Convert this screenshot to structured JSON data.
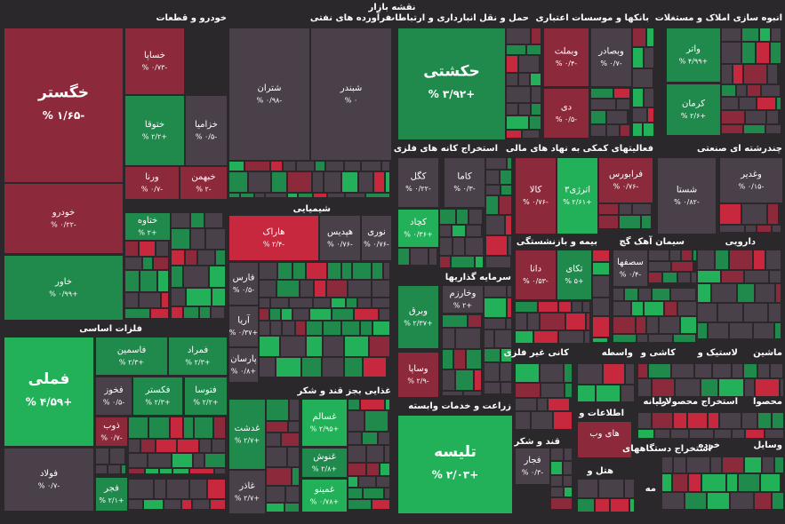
{
  "title": "نقشه بازار",
  "sectors": [
    {
      "name": "خودرو و قطعات",
      "tiles": [
        {
          "name": "خگستر",
          "change": "-۱/۶۵ %"
        },
        {
          "name": "خساپا",
          "change": "-۰/۷۳ %"
        },
        {
          "name": "ختوقا",
          "change": "+۲/۲ %"
        },
        {
          "name": "خزامیا",
          "change": "-۰/۵ %"
        },
        {
          "name": "ورنا",
          "change": "-۰/۷ %"
        },
        {
          "name": "خبهمن",
          "change": "-۲ %"
        },
        {
          "name": "خودرو",
          "change": "-۰/۲۲ %"
        },
        {
          "name": "خاور",
          "change": "+۰/۹۹ %"
        },
        {
          "name": "ختاوه",
          "change": "+۲ %"
        }
      ]
    },
    {
      "name": "فرآورده های نفتی",
      "tiles": [
        {
          "name": "شتران",
          "change": "-۰/۹۸ %"
        },
        {
          "name": "شبندر",
          "change": "۰ %"
        }
      ]
    },
    {
      "name": "شیمیایی",
      "tiles": [
        {
          "name": "هاراک",
          "change": "-۲/۴ %"
        },
        {
          "name": "هپدیس",
          "change": "-۰/۷۶ %"
        },
        {
          "name": "نوری",
          "change": "-۰/۷۶ %"
        },
        {
          "name": "فارس",
          "change": "-۰/۵ %"
        },
        {
          "name": "آریا",
          "change": "+۰/۳۷ %"
        },
        {
          "name": "پارسان",
          "change": "+۰/۸ %"
        }
      ]
    },
    {
      "name": "غذایی بجز قند و شکر",
      "tiles": [
        {
          "name": "غدشت",
          "change": "+۲/۷ %"
        },
        {
          "name": "غسالم",
          "change": "+۲/۹۵ %"
        },
        {
          "name": "غنوش",
          "change": "+۲/۸ %"
        },
        {
          "name": "غمینو",
          "change": "+۰/۷۸ %"
        },
        {
          "name": "غاذر",
          "change": "+۲/۷ %"
        }
      ]
    },
    {
      "name": "حمل و نقل انبارداری و ارتباطات",
      "tiles": [
        {
          "name": "حکشتی",
          "change": "+۳/۹۲ %"
        }
      ]
    },
    {
      "name": "بانکها و موسسات اعتباری",
      "tiles": [
        {
          "name": "وبملت",
          "change": "-۰/۴ %"
        },
        {
          "name": "وبصادر",
          "change": "-۰/۷ %"
        },
        {
          "name": "دی",
          "change": "-۰/۵ %"
        }
      ]
    },
    {
      "name": "انبوه سازی املاک و مستغلات",
      "tiles": [
        {
          "name": "واتر",
          "change": "+۴/۹۹ %"
        },
        {
          "name": "کرمان",
          "change": "+۲/۶ %"
        }
      ]
    },
    {
      "name": "استخراج کانه های فلزی",
      "tiles": [
        {
          "name": "کگل",
          "change": "-۰/۲۲ %"
        },
        {
          "name": "کاما",
          "change": "-۰/۳ %"
        },
        {
          "name": "کچاد",
          "change": "+۰/۳۶ %"
        }
      ]
    },
    {
      "name": "فعالیتهای کمکی به نهاد های مالی",
      "tiles": [
        {
          "name": "کالا",
          "change": "-۰/۷۶ %"
        },
        {
          "name": "اترژی۳",
          "change": "+۲/۶۱ %"
        },
        {
          "name": "فرابورس",
          "change": "-۰/۷۶ %"
        }
      ]
    },
    {
      "name": "چندرشته ای صنعتی",
      "tiles": [
        {
          "name": "شستا",
          "change": "-۰/۸۲ %"
        },
        {
          "name": "وغدیر",
          "change": "-۰/۱۵ %"
        }
      ]
    },
    {
      "name": "سرمایه گذاریها",
      "tiles": [
        {
          "name": "وخارزم",
          "change": "+۲ %"
        },
        {
          "name": "وبرق",
          "change": "+۲/۳۷ %"
        },
        {
          "name": "وساپا",
          "change": "-۲/۹ %"
        }
      ]
    },
    {
      "name": "زراعت و خدمات وابسته",
      "tiles": [
        {
          "name": "تلیسه",
          "change": "+۲/۰۳ %"
        }
      ]
    },
    {
      "name": "بیمه و بازنشستگی",
      "tiles": [
        {
          "name": "دانا",
          "change": "-۰/۵۳ %"
        },
        {
          "name": "تکای",
          "change": "+۵ %"
        }
      ]
    },
    {
      "name": "سیمان آهک گچ",
      "tiles": [
        {
          "name": "سصفها",
          "change": "-۰/۴ %"
        }
      ]
    },
    {
      "name": "دارویی",
      "tiles": []
    },
    {
      "name": "فلزات اساسی",
      "tiles": [
        {
          "name": "فملی",
          "change": "+۴/۵۹ %"
        },
        {
          "name": "فاسمین",
          "change": "+۲/۳ %"
        },
        {
          "name": "فمراد",
          "change": "+۲/۳ %"
        },
        {
          "name": "فخوز",
          "change": "-۰/۵ %"
        },
        {
          "name": "فکستر",
          "change": "+۲/۳ %"
        },
        {
          "name": "فتوسا",
          "change": "+۲/۲ %"
        },
        {
          "name": "ذوب",
          "change": "-۰/۷ %"
        },
        {
          "name": "فولاد",
          "change": "-۰/۷ %"
        },
        {
          "name": "فجر",
          "change": "+۲/۱ %"
        }
      ]
    },
    {
      "name": "کانی غیر فلزی",
      "tiles": []
    },
    {
      "name": "واسطه",
      "tiles": []
    },
    {
      "name": "کاشی و",
      "tiles": []
    },
    {
      "name": "لاستیک و",
      "tiles": []
    },
    {
      "name": "ماشین",
      "tiles": []
    },
    {
      "name": "اطلاعات و",
      "tiles": [
        {
          "name": "های وب",
          "change": ""
        }
      ]
    },
    {
      "name": "رایانه",
      "tiles": []
    },
    {
      "name": "استخراج محصولات",
      "tiles": []
    },
    {
      "name": "محصوا",
      "tiles": []
    },
    {
      "name": "قند و شکر",
      "tiles": [
        {
          "name": "فجار",
          "change": "-۰/۳ %"
        }
      ]
    },
    {
      "name": "هتل و",
      "tiles": []
    },
    {
      "name": "استخراج دستگاههای",
      "tiles": []
    },
    {
      "name": "خرده",
      "tiles": []
    },
    {
      "name": "وسایل",
      "tiles": []
    },
    {
      "name": "مه",
      "tiles": []
    }
  ]
}
